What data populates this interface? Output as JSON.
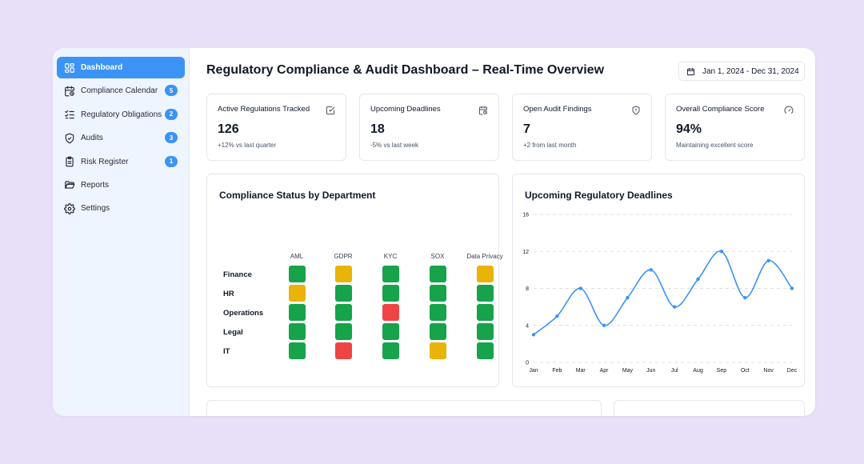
{
  "sidebar": {
    "items": [
      {
        "label": "Dashboard",
        "icon": "dashboard-icon",
        "active": true,
        "badge": ""
      },
      {
        "label": "Compliance Calendar",
        "icon": "calendar-clock-icon",
        "active": false,
        "badge": "5"
      },
      {
        "label": "Regulatory Obligations",
        "icon": "list-checks-icon",
        "active": false,
        "badge": "2"
      },
      {
        "label": "Audits",
        "icon": "shield-check-icon",
        "active": false,
        "badge": "3"
      },
      {
        "label": "Risk Register",
        "icon": "clipboard-icon",
        "active": false,
        "badge": "1"
      },
      {
        "label": "Reports",
        "icon": "folder-open-icon",
        "active": false,
        "badge": ""
      },
      {
        "label": "Settings",
        "icon": "gear-icon",
        "active": false,
        "badge": ""
      }
    ]
  },
  "header": {
    "title": "Regulatory Compliance & Audit Dashboard – Real-Time Overview",
    "date_range": "Jan 1, 2024 - Dec 31, 2024"
  },
  "kpis": [
    {
      "title": "Active Regulations Tracked",
      "value": "126",
      "sub": "+12% vs last quarter",
      "icon": "checkbox-icon"
    },
    {
      "title": "Upcoming Deadlines",
      "value": "18",
      "sub": "-5% vs last week",
      "icon": "calendar-clock-icon"
    },
    {
      "title": "Open Audit Findings",
      "value": "7",
      "sub": "+2 from last month",
      "icon": "shield-alert-icon"
    },
    {
      "title": "Overall Compliance Score",
      "value": "94%",
      "sub": "Maintaining excellent score",
      "icon": "gauge-icon"
    }
  ],
  "heatmap": {
    "title": "Compliance Status by Department",
    "columns": [
      "AML",
      "GDPR",
      "KYC",
      "SOX",
      "Data Privacy"
    ],
    "rows": [
      {
        "label": "Finance",
        "cells": [
          "green",
          "amber",
          "green",
          "green",
          "amber"
        ]
      },
      {
        "label": "HR",
        "cells": [
          "amber",
          "green",
          "green",
          "green",
          "green"
        ]
      },
      {
        "label": "Operations",
        "cells": [
          "green",
          "green",
          "red",
          "green",
          "green"
        ]
      },
      {
        "label": "Legal",
        "cells": [
          "green",
          "green",
          "green",
          "green",
          "green"
        ]
      },
      {
        "label": "IT",
        "cells": [
          "green",
          "red",
          "green",
          "amber",
          "green"
        ]
      }
    ],
    "colors": {
      "green": "#16a34a",
      "amber": "#eab308",
      "red": "#ef4444"
    }
  },
  "chart_data": {
    "type": "line",
    "title": "Upcoming Regulatory Deadlines",
    "categories": [
      "Jan",
      "Feb",
      "Mar",
      "Apr",
      "May",
      "Jun",
      "Jul",
      "Aug",
      "Sep",
      "Oct",
      "Nov",
      "Dec"
    ],
    "values": [
      3,
      5,
      8,
      4,
      7,
      10,
      6,
      9,
      12,
      7,
      11,
      8
    ],
    "yticks": [
      0,
      4,
      8,
      12,
      16
    ],
    "ylim": [
      0,
      16
    ],
    "grid": true,
    "line_color": "#3b93f6"
  },
  "colors": {
    "accent": "#3b93f6"
  }
}
